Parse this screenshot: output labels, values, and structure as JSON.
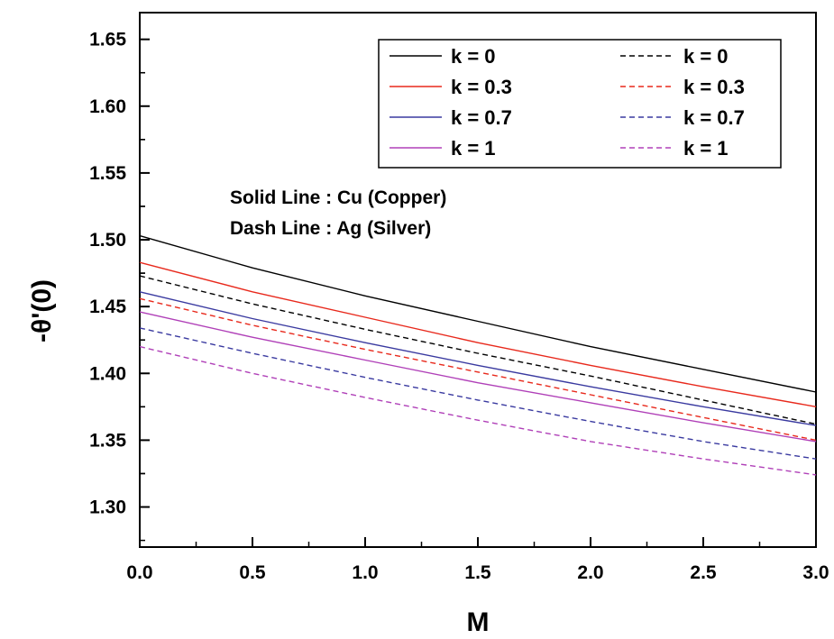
{
  "chart_data": {
    "type": "line",
    "xlabel": "M",
    "ylabel": "-θ'(0)",
    "xlim": [
      0,
      3
    ],
    "ylim": [
      1.27,
      1.67
    ],
    "x_ticks": [
      "0.0",
      "0.5",
      "1.0",
      "1.5",
      "2.0",
      "2.5",
      "3.0"
    ],
    "y_ticks": [
      "1.30",
      "1.35",
      "1.40",
      "1.45",
      "1.50",
      "1.55",
      "1.60",
      "1.65"
    ],
    "grid": false,
    "legend_position": "top-right",
    "x": [
      0,
      0.5,
      1.0,
      1.5,
      2.0,
      2.5,
      3.0
    ],
    "series": [
      {
        "name": "k  =  0",
        "material": "Cu",
        "line": "solid",
        "color": "#000000",
        "values": [
          1.503,
          1.479,
          1.458,
          1.439,
          1.42,
          1.403,
          1.386
        ]
      },
      {
        "name": "k  =  0.3",
        "material": "Cu",
        "line": "solid",
        "color": "#e8291c",
        "values": [
          1.483,
          1.461,
          1.442,
          1.423,
          1.406,
          1.39,
          1.375
        ]
      },
      {
        "name": "k  =  0.7",
        "material": "Cu",
        "line": "solid",
        "color": "#3a3aa0",
        "values": [
          1.461,
          1.441,
          1.423,
          1.406,
          1.39,
          1.375,
          1.361
        ]
      },
      {
        "name": "k  =  1",
        "material": "Cu",
        "line": "solid",
        "color": "#b040b8",
        "values": [
          1.446,
          1.427,
          1.41,
          1.393,
          1.378,
          1.363,
          1.349
        ]
      },
      {
        "name": "k  =  0",
        "material": "Ag",
        "line": "dashed",
        "color": "#000000",
        "values": [
          1.473,
          1.452,
          1.433,
          1.415,
          1.398,
          1.38,
          1.362
        ]
      },
      {
        "name": "k  =  0.3",
        "material": "Ag",
        "line": "dashed",
        "color": "#e8291c",
        "values": [
          1.456,
          1.436,
          1.418,
          1.401,
          1.384,
          1.367,
          1.35
        ]
      },
      {
        "name": "k  =  0.7",
        "material": "Ag",
        "line": "dashed",
        "color": "#3a3aa0",
        "values": [
          1.434,
          1.415,
          1.397,
          1.38,
          1.364,
          1.349,
          1.336
        ]
      },
      {
        "name": "k  =  1",
        "material": "Ag",
        "line": "dashed",
        "color": "#b040b8",
        "values": [
          1.42,
          1.4,
          1.382,
          1.365,
          1.349,
          1.336,
          1.324
        ]
      }
    ],
    "annotations": [
      "Solid Line : Cu (Copper)",
      "Dash Line : Ag (Silver)"
    ]
  }
}
